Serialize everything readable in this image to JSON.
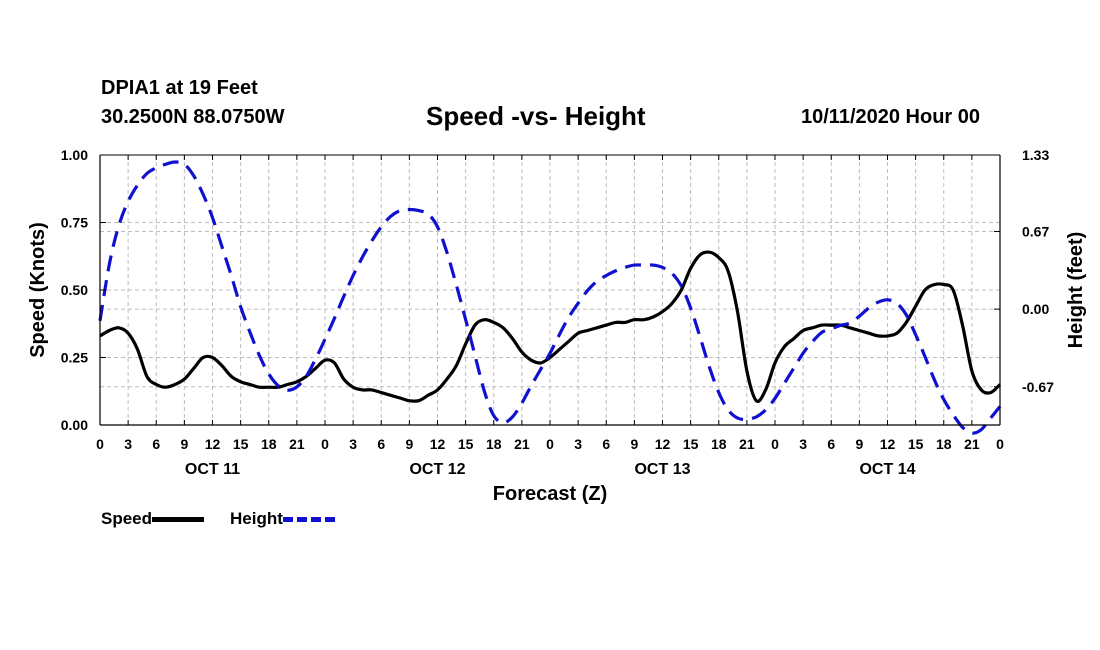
{
  "header": {
    "station": "DPIA1 at 19 Feet",
    "coords": "30.2500N 88.0750W",
    "title": "Speed -vs- Height",
    "run_time": "10/11/2020 Hour 00"
  },
  "legend": {
    "speed_label": "Speed",
    "height_label": "Height"
  },
  "chart_data": {
    "type": "line",
    "title": "Speed -vs- Height",
    "xlabel": "Forecast (Z)",
    "ylabel": "Speed (Knots)",
    "y2label": "Height (feet)",
    "xlim": [
      0,
      96
    ],
    "ylim": [
      0,
      1
    ],
    "y2lim": [
      -1.0,
      1.33
    ],
    "x_ticks": [
      0,
      3,
      6,
      9,
      12,
      15,
      18,
      21,
      24,
      27,
      30,
      33,
      36,
      39,
      42,
      45,
      48,
      51,
      54,
      57,
      60,
      63,
      66,
      69,
      72,
      75,
      78,
      81,
      84,
      87,
      90,
      93,
      96
    ],
    "x_tick_labels": [
      "0",
      "3",
      "6",
      "9",
      "12",
      "15",
      "18",
      "21",
      "0",
      "3",
      "6",
      "9",
      "12",
      "15",
      "18",
      "21",
      "0",
      "3",
      "6",
      "9",
      "12",
      "15",
      "18",
      "21",
      "0",
      "3",
      "6",
      "9",
      "12",
      "15",
      "18",
      "21",
      "0"
    ],
    "y_ticks": [
      0,
      0.25,
      0.5,
      0.75,
      1.0
    ],
    "y_tick_labels": [
      "0.00",
      "0.25",
      "0.50",
      "0.75",
      "1.00"
    ],
    "y2_ticks": [
      -0.67,
      0.0,
      0.67,
      1.33
    ],
    "y2_tick_labels": [
      "-0.67",
      "0.00",
      "0.67",
      "1.33"
    ],
    "day_labels": [
      {
        "x": 12,
        "label": "OCT 11"
      },
      {
        "x": 36,
        "label": "OCT 12"
      },
      {
        "x": 60,
        "label": "OCT 13"
      },
      {
        "x": 84,
        "label": "OCT 14"
      }
    ],
    "grid": true,
    "series": [
      {
        "name": "Speed",
        "axis": "left",
        "color": "#000000",
        "style": "solid",
        "x": [
          0,
          1,
          2,
          3,
          4,
          5,
          6,
          7,
          8,
          9,
          10,
          11,
          12,
          13,
          14,
          15,
          16,
          17,
          18,
          19,
          20,
          21,
          22,
          23,
          24,
          25,
          26,
          27,
          28,
          29,
          30,
          31,
          32,
          33,
          34,
          35,
          36,
          37,
          38,
          39,
          40,
          41,
          42,
          43,
          44,
          45,
          46,
          47,
          48,
          49,
          50,
          51,
          52,
          53,
          54,
          55,
          56,
          57,
          58,
          59,
          60,
          61,
          62,
          63,
          64,
          65,
          66,
          67,
          68,
          69,
          70,
          71,
          72,
          73,
          74,
          75,
          76,
          77,
          78,
          79,
          80,
          81,
          82,
          83,
          84,
          85,
          86,
          87,
          88,
          89,
          90,
          91,
          92,
          93,
          94,
          95,
          96
        ],
        "values": [
          0.33,
          0.35,
          0.36,
          0.34,
          0.28,
          0.18,
          0.15,
          0.14,
          0.15,
          0.17,
          0.21,
          0.25,
          0.25,
          0.22,
          0.18,
          0.16,
          0.15,
          0.14,
          0.14,
          0.14,
          0.15,
          0.16,
          0.18,
          0.21,
          0.24,
          0.23,
          0.17,
          0.14,
          0.13,
          0.13,
          0.12,
          0.11,
          0.1,
          0.09,
          0.09,
          0.11,
          0.13,
          0.17,
          0.22,
          0.3,
          0.37,
          0.39,
          0.38,
          0.36,
          0.32,
          0.27,
          0.24,
          0.23,
          0.25,
          0.28,
          0.31,
          0.34,
          0.35,
          0.36,
          0.37,
          0.38,
          0.38,
          0.39,
          0.39,
          0.4,
          0.42,
          0.45,
          0.5,
          0.58,
          0.63,
          0.64,
          0.62,
          0.57,
          0.42,
          0.2,
          0.09,
          0.13,
          0.23,
          0.29,
          0.32,
          0.35,
          0.36,
          0.37,
          0.37,
          0.37,
          0.36,
          0.35,
          0.34,
          0.33,
          0.33,
          0.34,
          0.38,
          0.44,
          0.5,
          0.52,
          0.52,
          0.5,
          0.37,
          0.2,
          0.13,
          0.12,
          0.15
        ]
      },
      {
        "name": "Height",
        "axis": "right",
        "color": "#1010d0",
        "style": "dashed",
        "x": [
          0,
          1,
          2,
          3,
          4,
          5,
          6,
          7,
          8,
          9,
          10,
          11,
          12,
          13,
          14,
          15,
          16,
          17,
          18,
          19,
          20,
          21,
          22,
          23,
          24,
          25,
          26,
          27,
          28,
          29,
          30,
          31,
          32,
          33,
          34,
          35,
          36,
          37,
          38,
          39,
          40,
          41,
          42,
          43,
          44,
          45,
          46,
          47,
          48,
          49,
          50,
          51,
          52,
          53,
          54,
          55,
          56,
          57,
          58,
          59,
          60,
          61,
          62,
          63,
          64,
          65,
          66,
          67,
          68,
          69,
          70,
          71,
          72,
          73,
          74,
          75,
          76,
          77,
          78,
          79,
          80,
          81,
          82,
          83,
          84,
          85,
          86,
          87,
          88,
          89,
          90,
          91,
          92,
          93,
          94,
          95,
          96
        ],
        "values": [
          -0.1,
          0.39,
          0.72,
          0.93,
          1.07,
          1.17,
          1.22,
          1.25,
          1.27,
          1.25,
          1.15,
          0.99,
          0.79,
          0.54,
          0.29,
          0.02,
          -0.2,
          -0.4,
          -0.56,
          -0.66,
          -0.7,
          -0.67,
          -0.58,
          -0.43,
          -0.26,
          -0.08,
          0.11,
          0.29,
          0.45,
          0.59,
          0.71,
          0.8,
          0.85,
          0.86,
          0.85,
          0.82,
          0.71,
          0.49,
          0.21,
          -0.09,
          -0.4,
          -0.71,
          -0.92,
          -0.98,
          -0.93,
          -0.81,
          -0.66,
          -0.52,
          -0.38,
          -0.22,
          -0.07,
          0.05,
          0.16,
          0.24,
          0.29,
          0.33,
          0.36,
          0.38,
          0.38,
          0.38,
          0.36,
          0.31,
          0.2,
          0.01,
          -0.24,
          -0.5,
          -0.72,
          -0.87,
          -0.94,
          -0.95,
          -0.93,
          -0.87,
          -0.77,
          -0.64,
          -0.51,
          -0.38,
          -0.28,
          -0.2,
          -0.17,
          -0.14,
          -0.12,
          -0.06,
          0.01,
          0.06,
          0.08,
          0.05,
          -0.05,
          -0.22,
          -0.41,
          -0.61,
          -0.78,
          -0.91,
          -1.02,
          -1.07,
          -1.04,
          -0.94,
          -0.84
        ]
      }
    ]
  }
}
